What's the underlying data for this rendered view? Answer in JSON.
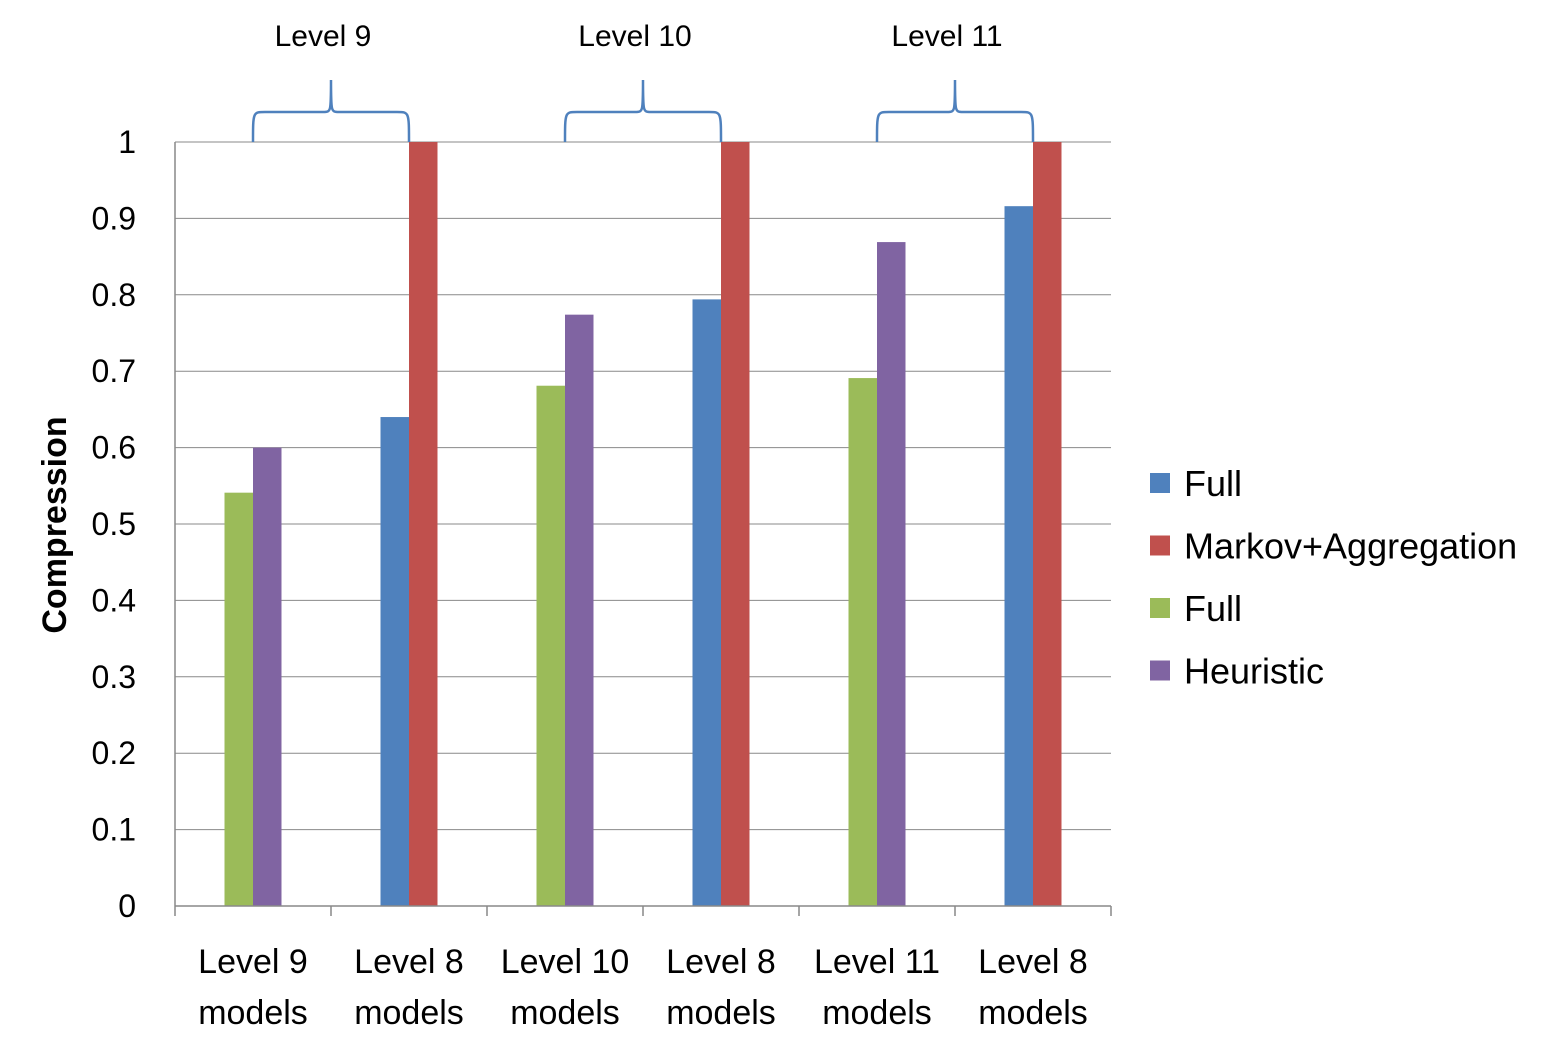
{
  "chart_data": {
    "type": "bar",
    "title": "",
    "xlabel": "",
    "ylabel": "Compression",
    "ylim": [
      0,
      1
    ],
    "yticks": [
      "0",
      "0.1",
      "0.2",
      "0.3",
      "0.4",
      "0.5",
      "0.6",
      "0.7",
      "0.8",
      "0.9",
      "1"
    ],
    "grid": true,
    "legend_position": "right",
    "categories": [
      [
        "Level 9",
        "models"
      ],
      [
        "Level 8",
        "models"
      ],
      [
        "Level 10",
        "models"
      ],
      [
        "Level 8",
        "models"
      ],
      [
        "Level 11",
        "models"
      ],
      [
        "Level 8",
        "models"
      ]
    ],
    "series": [
      {
        "name": "Full",
        "color": "#4F81BD",
        "values": [
          null,
          0.64,
          null,
          0.794,
          null,
          0.916
        ]
      },
      {
        "name": "Markov+Aggregation",
        "color": "#C0504D",
        "values": [
          null,
          1.0,
          null,
          1.0,
          null,
          1.0
        ]
      },
      {
        "name": "Full",
        "color": "#9BBB59",
        "values": [
          0.541,
          null,
          0.681,
          null,
          0.691,
          null
        ]
      },
      {
        "name": "Heuristic",
        "color": "#8064A2",
        "values": [
          0.6,
          null,
          0.774,
          null,
          0.869,
          null
        ]
      }
    ],
    "group_annotations": [
      {
        "label": "Level 9",
        "categories": [
          0,
          1
        ]
      },
      {
        "label": "Level 10",
        "categories": [
          2,
          3
        ]
      },
      {
        "label": "Level 11",
        "categories": [
          4,
          5
        ]
      }
    ]
  }
}
